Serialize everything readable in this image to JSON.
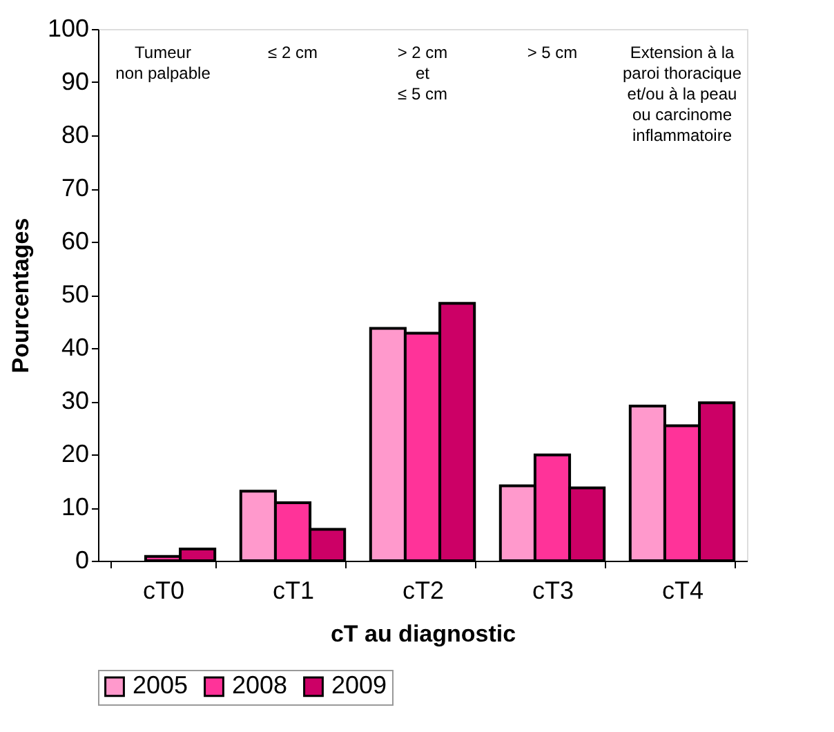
{
  "chart_data": {
    "type": "bar",
    "xlabel": "cT au diagnostic",
    "ylabel": "Pourcentages",
    "categories": [
      "cT0",
      "cT1",
      "cT2",
      "cT3",
      "cT4"
    ],
    "series": [
      {
        "name": "2005",
        "color": "#ff99cc",
        "values": [
          null,
          13.1,
          43.7,
          14.1,
          29.1
        ]
      },
      {
        "name": "2008",
        "color": "#ff3399",
        "values": [
          0.8,
          10.9,
          42.8,
          19.9,
          25.4
        ]
      },
      {
        "name": "2009",
        "color": "#cc0066",
        "values": [
          2.2,
          5.9,
          48.4,
          13.7,
          29.7
        ]
      }
    ],
    "ylim": [
      0,
      100
    ],
    "yticks": [
      0,
      10,
      20,
      30,
      40,
      50,
      60,
      70,
      80,
      90,
      100
    ],
    "grid": false,
    "legend": "bottom",
    "annotations": [
      "Tumeur\nnon palpable",
      "≤ 2 cm",
      "> 2 cm\net\n≤ 5 cm",
      "> 5 cm",
      "Extension à la\nparoi thoracique\net/ou à la peau\nou carcinome\ninflammatoire"
    ]
  }
}
